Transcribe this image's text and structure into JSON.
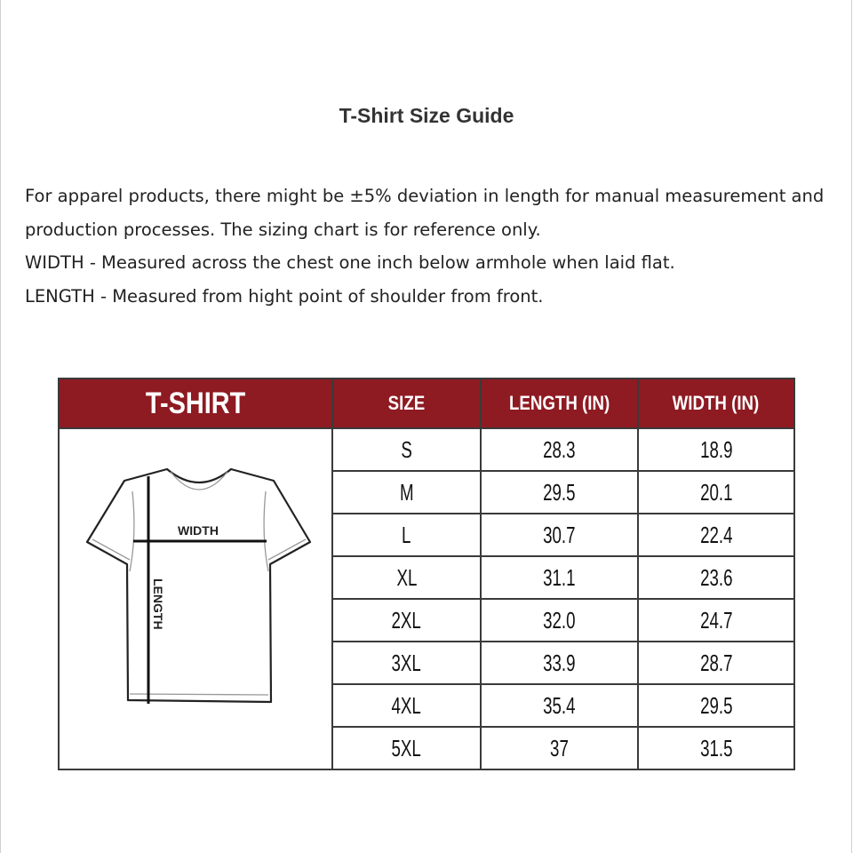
{
  "title": "T-Shirt Size Guide",
  "description": [
    "For apparel products, there might be ±5% deviation in length for manual measurement and production processes. The sizing chart is for reference only.",
    "WIDTH - Measured across the chest one inch below armhole when laid flat.",
    "LENGTH - Measured from hight point of shoulder from front."
  ],
  "header_color": "#8e1a22",
  "table": {
    "headers": [
      "T-SHIRT",
      "SIZE",
      "LENGTH (IN)",
      "WIDTH (IN)"
    ],
    "diagram_labels": {
      "width": "WIDTH",
      "length": "LENGTH"
    },
    "rows": [
      {
        "size": "S",
        "length": "28.3",
        "width": "18.9"
      },
      {
        "size": "M",
        "length": "29.5",
        "width": "20.1"
      },
      {
        "size": "L",
        "length": "30.7",
        "width": "22.4"
      },
      {
        "size": "XL",
        "length": "31.1",
        "width": "23.6"
      },
      {
        "size": "2XL",
        "length": "32.0",
        "width": "24.7"
      },
      {
        "size": "3XL",
        "length": "33.9",
        "width": "28.7"
      },
      {
        "size": "4XL",
        "length": "35.4",
        "width": "29.5"
      },
      {
        "size": "5XL",
        "length": "37",
        "width": "31.5"
      }
    ]
  }
}
